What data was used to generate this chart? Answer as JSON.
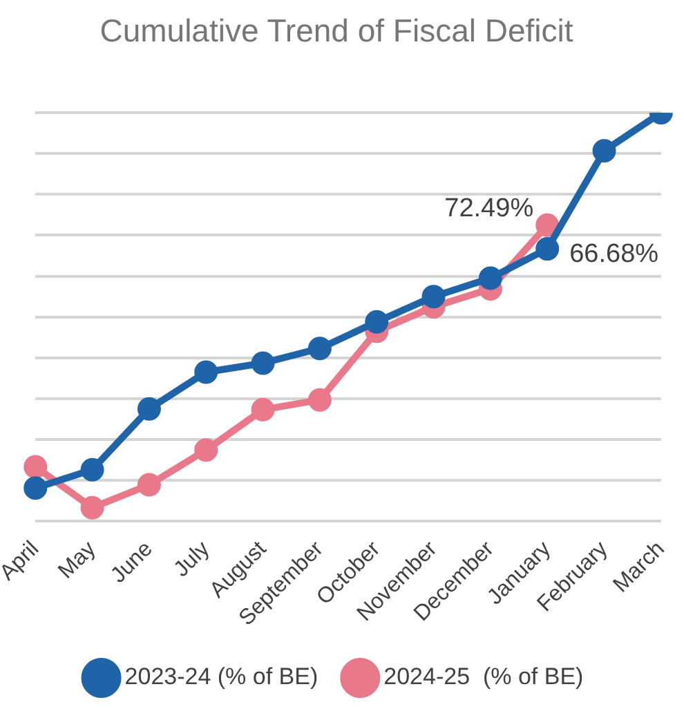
{
  "chart_data": {
    "type": "line",
    "title": "Cumulative Trend of Fiscal Deficit",
    "categories": [
      "April",
      "May",
      "June",
      "July",
      "August",
      "September",
      "October",
      "November",
      "December",
      "January",
      "February",
      "March"
    ],
    "series": [
      {
        "name": "2023-24 (% of BE)",
        "color": "#1f64a8",
        "values": [
          8.1,
          12.6,
          27.5,
          36.5,
          38.7,
          42.3,
          48.8,
          55.0,
          59.5,
          66.68,
          90.7,
          100.0
        ],
        "value_labels": [
          null,
          null,
          null,
          null,
          null,
          null,
          null,
          null,
          null,
          "66.68%",
          null,
          null
        ]
      },
      {
        "name": "2024-25  (% of BE)",
        "color": "#e8788a",
        "values": [
          13.3,
          3.3,
          8.9,
          17.4,
          27.3,
          29.7,
          46.5,
          52.5,
          56.9,
          72.49,
          null,
          null
        ],
        "value_labels": [
          null,
          null,
          null,
          null,
          null,
          null,
          null,
          null,
          null,
          "72.49%",
          null,
          null
        ]
      }
    ],
    "ylim": [
      0,
      100
    ],
    "yticks": [
      {
        "value": 0,
        "label": null
      },
      {
        "value": 10,
        "label": null
      },
      {
        "value": 20,
        "label": null
      },
      {
        "value": 30,
        "label": null
      },
      {
        "value": 40,
        "label": null
      },
      {
        "value": 50,
        "label": null
      },
      {
        "value": 60,
        "label": null
      },
      {
        "value": 70,
        "label": null
      },
      {
        "value": 80,
        "label": null
      },
      {
        "value": 90,
        "label": null
      },
      {
        "value": 100,
        "label": null
      }
    ],
    "tick_labels": "x",
    "grid": "y",
    "legend": "bottom",
    "marker": "circle",
    "line_style": "solid"
  }
}
